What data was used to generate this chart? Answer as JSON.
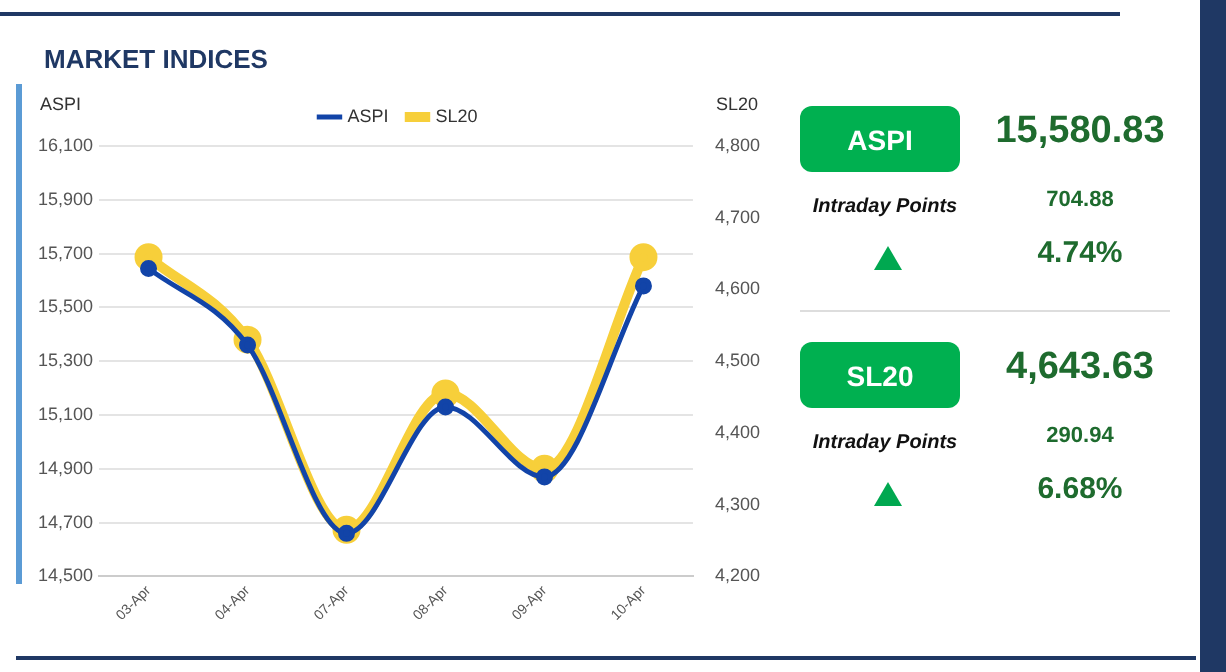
{
  "chart_data": [
    {
      "type": "line",
      "title": "MARKET INDICES",
      "ylabel": "ASPI",
      "y2label": "SL20",
      "categories": [
        "03-Apr",
        "04-Apr",
        "07-Apr",
        "08-Apr",
        "09-Apr",
        "10-Apr"
      ],
      "series": [
        {
          "name": "ASPI",
          "color": "#1244a8",
          "values": [
            15645,
            15360,
            14660,
            15130,
            14870,
            15580
          ]
        },
        {
          "name": "SL20",
          "color": "#f7cf3a",
          "axis": "y2",
          "values": [
            4645,
            4530,
            4265,
            4455,
            4350,
            4645
          ]
        }
      ],
      "ylim": [
        14500,
        16100
      ],
      "yticks": [
        {
          "value": 14500,
          "label": "14,500"
        },
        {
          "value": 14700,
          "label": "14,700"
        },
        {
          "value": 14900,
          "label": "14,900"
        },
        {
          "value": 15100,
          "label": "15,100"
        },
        {
          "value": 15300,
          "label": "15,300"
        },
        {
          "value": 15500,
          "label": "15,500"
        },
        {
          "value": 15700,
          "label": "15,700"
        },
        {
          "value": 15900,
          "label": "15,900"
        },
        {
          "value": 16100,
          "label": "16,100"
        }
      ],
      "y2lim": [
        4200,
        4800
      ],
      "y2ticks": [
        {
          "value": 4200,
          "label": "4,200"
        },
        {
          "value": 4300,
          "label": "4,300"
        },
        {
          "value": 4400,
          "label": "4,400"
        },
        {
          "value": 4500,
          "label": "4,500"
        },
        {
          "value": 4600,
          "label": "4,600"
        },
        {
          "value": 4700,
          "label": "4,700"
        },
        {
          "value": 4800,
          "label": "4,800"
        }
      ],
      "grid": "y",
      "legend": "top",
      "marker": "circle",
      "line_style": "solid"
    },
    {
      "type": "other",
      "annotations": [
        "ASPI",
        "15,580.83",
        "Intraday Points",
        "704.88",
        "4.74%",
        "SL20",
        "4,643.63",
        "Intraday Points",
        "290.94",
        "6.68%"
      ]
    }
  ]
}
